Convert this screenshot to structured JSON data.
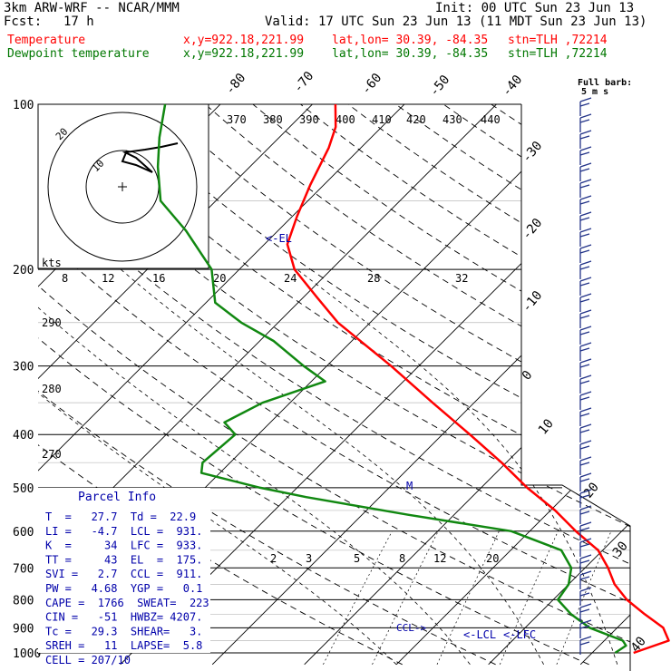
{
  "header": {
    "model": "3km ARW-WRF -- NCAR/MMM",
    "init": "Init: 00 UTC Sun 23 Jun 13",
    "fcst_label": "Fcst:",
    "fcst_value": "17 h",
    "valid": "Valid: 17 UTC Sun 23 Jun 13 (11 MDT Sun 23 Jun 13)"
  },
  "legend": [
    {
      "name": "Temperature",
      "color": "#ff0000",
      "xy": "x,y=922.18,221.99",
      "latlon": "lat,lon= 30.39, -84.35",
      "stn": "stn=TLH ,72214"
    },
    {
      "name": "Dewpoint temperature",
      "color": "#007700",
      "xy": "x,y=922.18,221.99",
      "latlon": "lat,lon= 30.39, -84.35",
      "stn": "stn=TLH ,72214"
    }
  ],
  "colors": {
    "temperature": "#ff0000",
    "dewpoint": "#118811",
    "parcel": "#0000aa",
    "grid": "#000000"
  },
  "chart_data": {
    "type": "line",
    "pressure_ticks": [
      100,
      200,
      300,
      400,
      500,
      600,
      700,
      800,
      900,
      1000
    ],
    "isotherm_labels": [
      "-80",
      "-70",
      "-60",
      "-50",
      "-40",
      "-30",
      "-20",
      "-10",
      "0",
      "10",
      "20",
      "30",
      "40"
    ],
    "theta_labels": [
      "370",
      "380",
      "390",
      "400",
      "410",
      "420",
      "430",
      "440"
    ],
    "theta_side_labels": [
      "290",
      "280",
      "270"
    ],
    "mixing_ratio_labels": [
      "2",
      "3",
      "5",
      "8",
      "12",
      "20"
    ],
    "inset": {
      "unit": "kts",
      "ring_label": "10",
      "ring_label2": "20",
      "speed_labels": [
        "8",
        "12",
        "16",
        "20",
        "24",
        "28",
        "32"
      ]
    },
    "full_barb_label": "Full barb:",
    "full_barb_value": "5 m s",
    "level_labels": {
      "el": "<-EL",
      "lcl": "<-LCL",
      "lfc": "<-LFC",
      "ccl": "CCL->",
      "m": "M"
    },
    "series": [
      {
        "name": "Temperature",
        "points": [
          [
            1000,
            24.5
          ],
          [
            950,
            27.0
          ],
          [
            900,
            25.0
          ],
          [
            850,
            21.5
          ],
          [
            800,
            18.0
          ],
          [
            750,
            15.0
          ],
          [
            700,
            12.5
          ],
          [
            650,
            9.5
          ],
          [
            600,
            5.0
          ],
          [
            550,
            0.5
          ],
          [
            500,
            -5.0
          ],
          [
            450,
            -10.5
          ],
          [
            400,
            -17.0
          ],
          [
            350,
            -24.5
          ],
          [
            300,
            -33.0
          ],
          [
            250,
            -43.5
          ],
          [
            225,
            -48.5
          ],
          [
            200,
            -54.0
          ],
          [
            180,
            -57.5
          ],
          [
            160,
            -59.5
          ],
          [
            140,
            -61.5
          ],
          [
            120,
            -63.5
          ],
          [
            110,
            -65.0
          ],
          [
            100,
            -67.5
          ]
        ]
      },
      {
        "name": "Dewpoint temperature",
        "points": [
          [
            1000,
            22.5
          ],
          [
            970,
            22.9
          ],
          [
            950,
            22.0
          ],
          [
            900,
            17.0
          ],
          [
            850,
            13.5
          ],
          [
            800,
            10.5
          ],
          [
            750,
            10.0
          ],
          [
            700,
            8.5
          ],
          [
            650,
            5.5
          ],
          [
            600,
            -2.0
          ],
          [
            560,
            -15.0
          ],
          [
            520,
            -28.0
          ],
          [
            500,
            -34.0
          ],
          [
            470,
            -42.0
          ],
          [
            450,
            -43.0
          ],
          [
            400,
            -42.5
          ],
          [
            380,
            -45.0
          ],
          [
            350,
            -43.0
          ],
          [
            320,
            -38.5
          ],
          [
            300,
            -42.5
          ],
          [
            270,
            -48.5
          ],
          [
            250,
            -54.0
          ],
          [
            230,
            -59.0
          ],
          [
            200,
            -63.0
          ],
          [
            170,
            -70.0
          ],
          [
            150,
            -76.0
          ],
          [
            130,
            -80.0
          ],
          [
            115,
            -83.0
          ],
          [
            100,
            -86.0
          ]
        ]
      }
    ]
  },
  "parcel_info": {
    "title": "Parcel Info",
    "rows": [
      "T  =   27.7  Td =  22.9",
      "LI =   -4.7  LCL =  931.",
      "K  =     34  LFC =  933.",
      "TT =     43  EL  =  175.",
      "SVI =   2.7  CCL =  911.",
      "PW =   4.68  YGP =   0.1",
      "CAPE =  1766  SWEAT=  223",
      "CIN =   -51  HWBZ= 4207.",
      "Tc =   29.3  SHEAR=   3.",
      "SREH =   11  LAPSE=  5.8",
      "CELL = 207/10"
    ]
  }
}
